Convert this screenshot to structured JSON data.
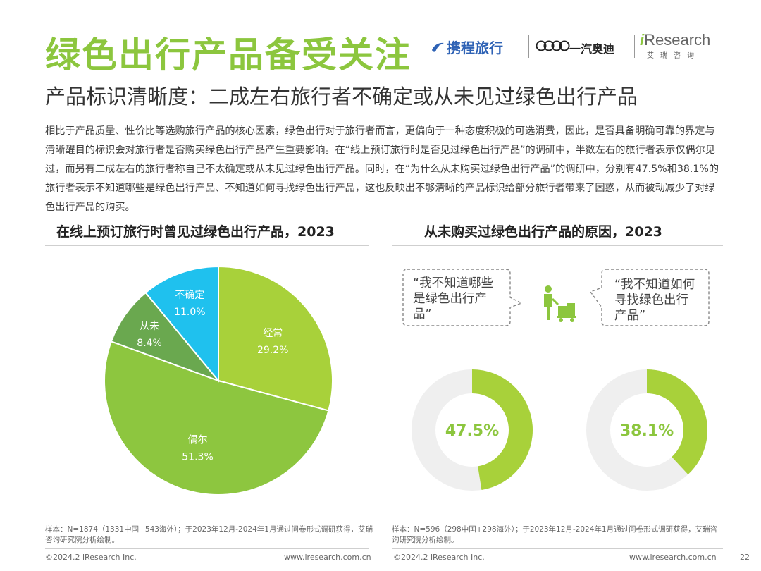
{
  "header": {
    "title": "绿色出行产品备受关注",
    "subtitle": "产品标识清晰度：二成左右旅行者不确定或从未见过绿色出行产品",
    "paragraph": "相比于产品质量、性价比等选购旅行产品的核心因素，绿色出行对于旅行者而言，更偏向于一种态度积极的可选消费，因此，是否具备明确可靠的界定与清晰醒目的标识会对旅行者是否购买绿色出行产品产生重要影响。在“线上预订旅行时是否见过绿色出行产品”的调研中，半数左右的旅行者表示仅偶尔见过，而另有二成左右的旅行者称自己不太确定或从未见过绿色出行产品。同时，在“为什么从未购买过绿色出行产品”的调研中，分别有47.5%和38.1%的旅行者表示不知道哪些是绿色出行产品、不知道如何寻找绿色出行产品，这也反映出不够清晰的产品标识给部分旅行者带来了困惑，从而被动减少了对绿色出行产品的购买。"
  },
  "logos": {
    "ctrip": "携程旅行",
    "faw": "一汽奥迪",
    "iresearch_i": "i",
    "iresearch_rest": "Research",
    "iresearch_cn": "艾瑞咨询"
  },
  "colors": {
    "accent": "#8cc63e",
    "pie_often": "#a8d13a",
    "pie_occasional": "#8dc63f",
    "pie_never": "#6aa84f",
    "pie_unsure": "#1fc1ee",
    "donut_track": "#efefef"
  },
  "chart_data": [
    {
      "type": "pie",
      "title": "在线上预订旅行时曾见过绿色出行产品，2023",
      "categories": [
        "经常",
        "偶尔",
        "从未",
        "不确定"
      ],
      "values": [
        29.2,
        51.3,
        8.4,
        11.0
      ],
      "labels": [
        "29.2%",
        "51.3%",
        "8.4%",
        "11.0%"
      ]
    },
    {
      "type": "pie",
      "title": "从未购买过绿色出行产品的原因，2023",
      "series": [
        {
          "name": "“我不知道哪些是绿色出行产品”",
          "values": [
            47.5
          ],
          "label": "47.5%"
        },
        {
          "name": "“我不知道如何寻找绿色出行产品”",
          "values": [
            38.1
          ],
          "label": "38.1%"
        }
      ]
    }
  ],
  "bubbles": {
    "left": "“我不知道哪些是绿色出行产品”",
    "right": "“我不知道如何寻找绿色出行产品”"
  },
  "notes": {
    "left": "样本：N=1874（1331中国+543海外）；于2023年12月-2024年1月通过问卷形式调研获得，艾瑞咨询研究院分析绘制。",
    "right": "样本：N=596（298中国+298海外）；于2023年12月-2024年1月通过问卷形式调研获得，艾瑞咨询研究院分析绘制。"
  },
  "footer": {
    "copyright_left": "©2024.2 iResearch Inc.",
    "url_left": "www.iresearch.com.cn",
    "copyright_right": "©2024.2 iResearch Inc.",
    "url_right": "www.iresearch.com.cn",
    "page_number": "22"
  }
}
